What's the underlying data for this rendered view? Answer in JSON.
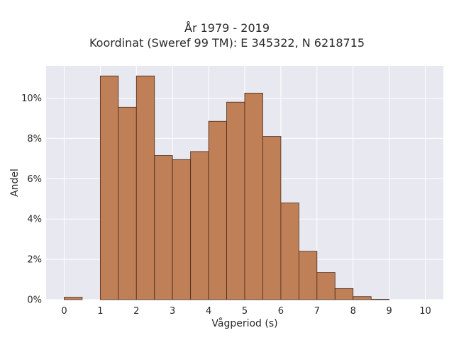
{
  "chart_data": {
    "type": "bar",
    "title_lines": [
      "År 1979 - 2019",
      "Koordinat (Sweref 99 TM): E 345322, N 6218715"
    ],
    "xlabel": "Vågperiod (s)",
    "ylabel": "Andel",
    "xlim": [
      -0.5,
      10.5
    ],
    "ylim": [
      0,
      11.6
    ],
    "xticks": [
      0,
      1,
      2,
      3,
      4,
      5,
      6,
      7,
      8,
      9,
      10
    ],
    "ytick_values": [
      0,
      2,
      4,
      6,
      8,
      10
    ],
    "ytick_labels": [
      "0%",
      "2%",
      "4%",
      "6%",
      "8%",
      "10%"
    ],
    "bin_width": 0.5,
    "bin_starts": [
      0,
      0.5,
      1,
      1.5,
      2,
      2.5,
      3,
      3.5,
      4,
      4.5,
      5,
      5.5,
      6,
      6.5,
      7,
      7.5,
      8,
      8.5,
      9,
      9.5
    ],
    "values": [
      0.12,
      0,
      11.1,
      9.55,
      11.1,
      7.15,
      6.95,
      7.35,
      8.85,
      9.8,
      10.25,
      8.1,
      4.8,
      2.4,
      1.35,
      0.55,
      0.15,
      0.02,
      0,
      0
    ],
    "grid": true,
    "bar_color": "#bf7f57",
    "bar_edge_color": "#4a2a1a",
    "plot_background": "#e8e8f0",
    "grid_color": "#ffffff"
  }
}
